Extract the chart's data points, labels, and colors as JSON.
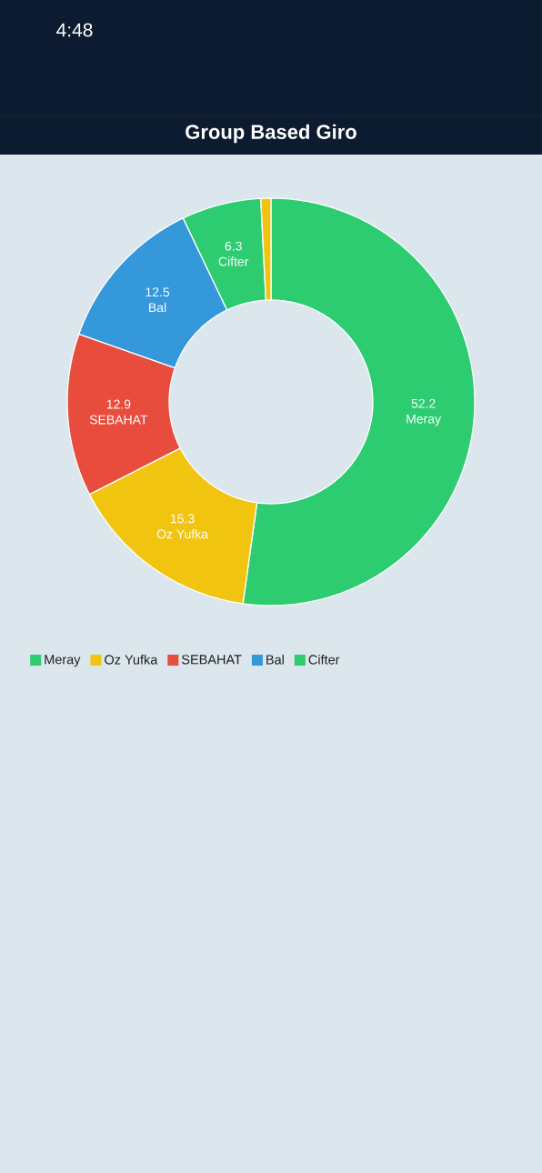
{
  "chart_data": {
    "type": "donut",
    "title": "Group Based Giro",
    "categories": [
      "Meray",
      "Oz  Yufka",
      "SEBAHAT",
      "Bal",
      "Cifter",
      null
    ],
    "values": [
      52.2,
      15.3,
      12.9,
      12.5,
      6.3,
      0.8
    ],
    "colors": [
      "#2ecc71",
      "#f1c40f",
      "#e74c3c",
      "#3498db",
      "#2ecc71",
      "#f1c40f"
    ],
    "value_labels": [
      "52.2",
      "15.3",
      "12.9",
      "12.5",
      "6.3",
      null
    ],
    "legend": "bottom left",
    "annotations": [
      "4:48"
    ]
  }
}
